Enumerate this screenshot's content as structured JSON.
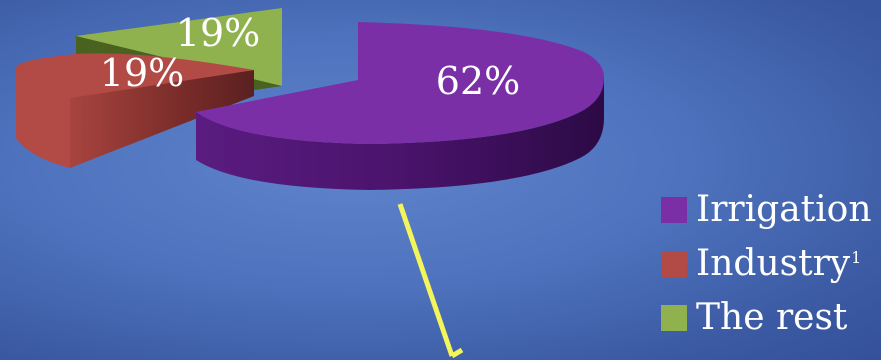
{
  "chart_data": {
    "type": "pie",
    "title": "",
    "categories": [
      "Irrigation",
      "Industry",
      "The rest"
    ],
    "values": [
      62,
      19,
      19
    ],
    "data_labels": [
      "62%",
      "19%",
      "19%"
    ],
    "colors": [
      "#7a2fa6",
      "#b24a46",
      "#8fb24f"
    ],
    "exploded": true,
    "three_d": true,
    "legend_position": "right"
  },
  "legend": {
    "items": [
      {
        "label": "Irrigation",
        "sup": "",
        "color": "#7a2fa6"
      },
      {
        "label": "Industry",
        "sup": "1",
        "color": "#b24a46"
      },
      {
        "label": "The rest",
        "sup": "",
        "color": "#8fb24f"
      }
    ]
  },
  "annotation": {
    "color": "#f4f55a"
  }
}
